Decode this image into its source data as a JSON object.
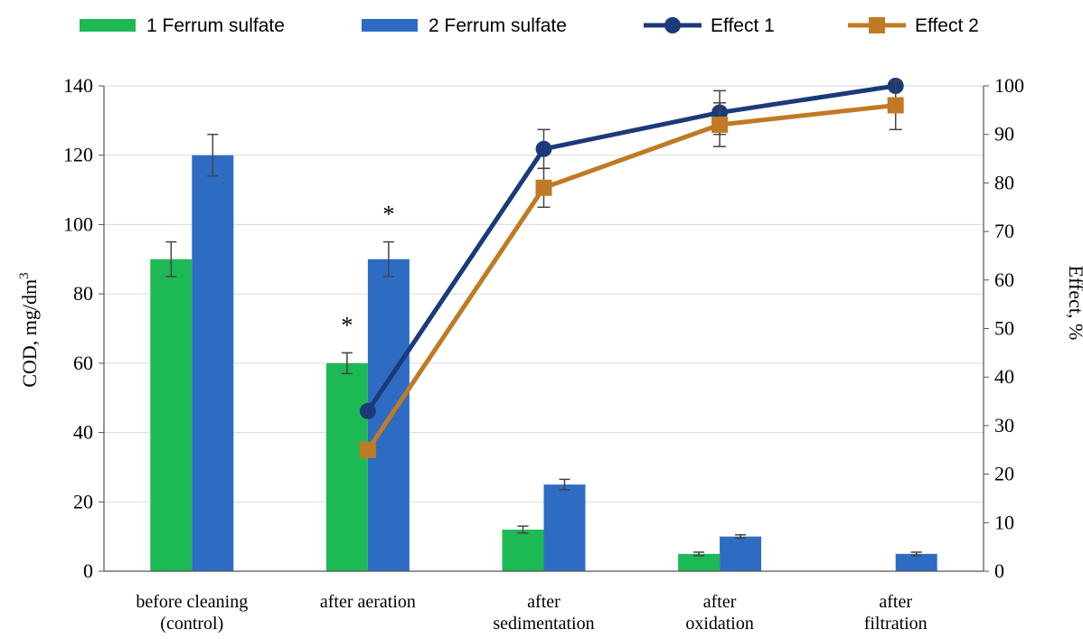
{
  "chart_data": {
    "type": "bar",
    "categories": [
      [
        "before cleaning",
        "(control)"
      ],
      [
        "after aeration"
      ],
      [
        "after",
        "sedimentation"
      ],
      [
        "after",
        "oxidation"
      ],
      [
        "after",
        "filtration"
      ]
    ],
    "ylabel": "COD, mg/dm",
    "ylabel_superscript": "3",
    "y2label": "Effect, %",
    "ylim": [
      0,
      140
    ],
    "y2lim": [
      0,
      100
    ],
    "yticks": [
      0,
      20,
      40,
      60,
      80,
      100,
      120,
      140
    ],
    "y2ticks": [
      0,
      10,
      20,
      30,
      40,
      50,
      60,
      70,
      80,
      90,
      100
    ],
    "grid": true,
    "legend_position": "top",
    "series": [
      {
        "name": "1 Ferrum sulfate",
        "kind": "bar",
        "axis": "left",
        "color": "#1db954",
        "values": [
          90,
          60,
          12,
          5,
          null
        ],
        "errors": [
          5,
          3,
          1,
          0.5,
          null
        ]
      },
      {
        "name": "2 Ferrum sulfate",
        "kind": "bar",
        "axis": "left",
        "color": "#2e6cc4",
        "values": [
          120,
          90,
          25,
          10,
          5
        ],
        "errors": [
          6,
          5,
          1.5,
          0.5,
          0.5
        ]
      },
      {
        "name": "Effect 1",
        "kind": "line",
        "axis": "right",
        "color": "#1b3a7a",
        "marker": "circle",
        "values": [
          null,
          33,
          87,
          94.5,
          100
        ],
        "errors": [
          null,
          null,
          4,
          4.5,
          null
        ]
      },
      {
        "name": "Effect 2",
        "kind": "line",
        "axis": "right",
        "color": "#c07a24",
        "marker": "square",
        "values": [
          null,
          25,
          79,
          92,
          96
        ],
        "errors": [
          null,
          null,
          4,
          4.5,
          5
        ]
      }
    ],
    "annotations": [
      {
        "text": "*",
        "category": 1,
        "series": 0
      },
      {
        "text": "*",
        "category": 1,
        "series": 1
      }
    ]
  }
}
